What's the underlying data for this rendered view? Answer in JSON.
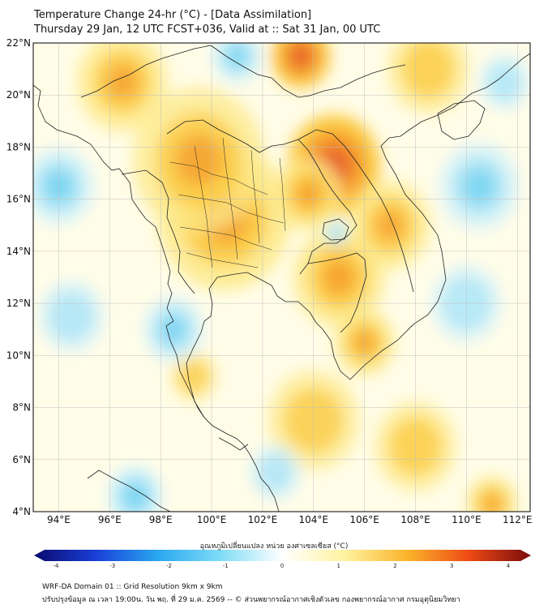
{
  "header": {
    "title_line1": "Temperature Change 24-hr (°C) - [Data Assimilation]",
    "title_line2": "Thursday 29 Jan, 12 UTC FCST+036, Valid at :: Sat 31 Jan, 00 UTC"
  },
  "map": {
    "lat_labels": [
      "22°N",
      "20°N",
      "18°N",
      "16°N",
      "14°N",
      "12°N",
      "10°N",
      "8°N",
      "6°N",
      "4°N"
    ],
    "lon_labels": [
      "94°E",
      "96°E",
      "98°E",
      "100°E",
      "102°E",
      "104°E",
      "106°E",
      "108°E",
      "110°E",
      "112°E"
    ],
    "lat_range": [
      4,
      22
    ],
    "lon_range": [
      93,
      112.5
    ],
    "colors": {
      "warm_light": "#fde98a",
      "warm_mid": "#fbc83c",
      "warm_orange": "#f59c2e",
      "hot": "#e8602a",
      "neutral": "#fffde8",
      "cool_light": "#d8f3fb",
      "cool_mid": "#a6e3f6",
      "cool": "#6fd0f0"
    },
    "anomalies": [
      {
        "kind": "warm",
        "lon": 100.5,
        "lat": 15.3,
        "strength": 0.8,
        "spread": 2.6
      },
      {
        "kind": "warm",
        "lon": 99.5,
        "lat": 17.5,
        "strength": 0.55,
        "spread": 2.6
      },
      {
        "kind": "hot",
        "lon": 104.8,
        "lat": 17.3,
        "strength": 1.0,
        "spread": 1.4
      },
      {
        "kind": "hot",
        "lon": 103.5,
        "lat": 21.5,
        "strength": 0.9,
        "spread": 0.9
      },
      {
        "kind": "warm",
        "lon": 103.8,
        "lat": 16.2,
        "strength": 0.8,
        "spread": 1.3
      },
      {
        "kind": "warm",
        "lon": 105.0,
        "lat": 13.0,
        "strength": 0.7,
        "spread": 1.8
      },
      {
        "kind": "warm",
        "lon": 106.0,
        "lat": 10.5,
        "strength": 0.6,
        "spread": 1.2
      },
      {
        "kind": "warm",
        "lon": 107.0,
        "lat": 15.0,
        "strength": 0.5,
        "spread": 1.6
      },
      {
        "kind": "warm",
        "lon": 96.5,
        "lat": 20.5,
        "strength": 0.5,
        "spread": 1.8
      },
      {
        "kind": "warm",
        "lon": 108.5,
        "lat": 21.0,
        "strength": 0.45,
        "spread": 1.6
      },
      {
        "kind": "warm",
        "lon": 104.0,
        "lat": 7.5,
        "strength": 0.4,
        "spread": 1.8
      },
      {
        "kind": "warm",
        "lon": 108.0,
        "lat": 6.5,
        "strength": 0.45,
        "spread": 1.6
      },
      {
        "kind": "warm",
        "lon": 111.0,
        "lat": 4.3,
        "strength": 0.6,
        "spread": 1.0
      },
      {
        "kind": "warm",
        "lon": 99.3,
        "lat": 9.2,
        "strength": 0.4,
        "spread": 0.9
      },
      {
        "kind": "cool",
        "lon": 97.0,
        "lat": 4.6,
        "strength": 0.8,
        "spread": 1.1
      },
      {
        "kind": "cool",
        "lon": 94.0,
        "lat": 16.5,
        "strength": 0.6,
        "spread": 1.4
      },
      {
        "kind": "cool",
        "lon": 98.5,
        "lat": 11.0,
        "strength": 0.55,
        "spread": 1.2
      },
      {
        "kind": "cool",
        "lon": 101.0,
        "lat": 21.5,
        "strength": 0.5,
        "spread": 1.0
      },
      {
        "kind": "cool",
        "lon": 110.5,
        "lat": 16.5,
        "strength": 0.5,
        "spread": 1.6
      },
      {
        "kind": "cool",
        "lon": 110.0,
        "lat": 12.0,
        "strength": 0.45,
        "spread": 1.4
      },
      {
        "kind": "cool",
        "lon": 104.9,
        "lat": 14.7,
        "strength": 0.55,
        "spread": 0.45
      },
      {
        "kind": "cool",
        "lon": 102.5,
        "lat": 5.5,
        "strength": 0.4,
        "spread": 1.0
      },
      {
        "kind": "cool",
        "lon": 94.5,
        "lat": 11.5,
        "strength": 0.4,
        "spread": 1.3
      },
      {
        "kind": "cool",
        "lon": 111.5,
        "lat": 20.5,
        "strength": 0.45,
        "spread": 1.0
      }
    ]
  },
  "colorbar": {
    "label": "อุณหภูมิเปลี่ยนแปลง หน่วย องศาเซลเซียส (°C)",
    "ticks": [
      "-4",
      "-3",
      "-2",
      "-1",
      "0",
      "1",
      "2",
      "3",
      "4"
    ],
    "stops": [
      "#0a0a6e",
      "#1a3fd8",
      "#2aa8f0",
      "#7fdcf6",
      "#ffffff",
      "#fff3a0",
      "#fbb52c",
      "#ee4a14",
      "#7a0c0c"
    ]
  },
  "footer": {
    "line1": "WRF-DA Domain 01 :: Grid Resolution 9km x 9km",
    "line2": "ปรับปรุงข้อมูล ณ เวลา 19:00น. วัน พฤ. ที่ 29 ม.ค. 2569 -- © ส่วนพยากรณ์อากาศเชิงตัวเลข กองพยากรณ์อากาศ กรมอุตุนิยมวิทยา"
  }
}
